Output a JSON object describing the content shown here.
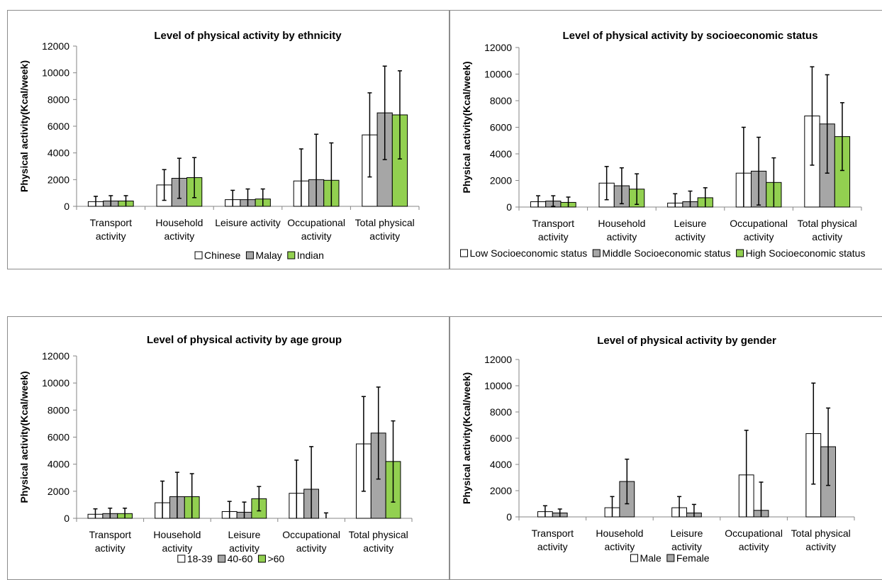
{
  "chart_data": [
    {
      "type": "bar",
      "title": "Level of physical activity by ethnicity",
      "ylabel": "Physical activity(Kcal/week)",
      "ylim": [
        0,
        12000
      ],
      "yticks": [
        "0",
        "2000",
        "4000",
        "6000",
        "8000",
        "10000",
        "12000"
      ],
      "categories": [
        [
          "Transport",
          "activity"
        ],
        [
          "Household",
          "activity"
        ],
        [
          "Leisure activity"
        ],
        [
          "Occupational",
          "activity"
        ],
        [
          "Total physical",
          "activity"
        ]
      ],
      "legend_position": "bottom",
      "series": [
        {
          "name": "Chinese",
          "color": "#ffffff",
          "values": [
            350,
            1600,
            500,
            1900,
            5350
          ],
          "err": [
            400,
            1150,
            700,
            2400,
            3150
          ]
        },
        {
          "name": "Malay",
          "color": "#a6a6a6",
          "values": [
            400,
            2100,
            500,
            2000,
            7000
          ],
          "err": [
            400,
            1500,
            800,
            3400,
            3500
          ]
        },
        {
          "name": "Indian",
          "color": "#92d050",
          "values": [
            400,
            2150,
            550,
            1950,
            6850
          ],
          "err": [
            400,
            1500,
            750,
            2800,
            3300
          ]
        }
      ]
    },
    {
      "type": "bar",
      "title": "Level of physical activity by socioeconomic status",
      "ylabel": "Physical activity(Kcal/week)",
      "ylim": [
        0,
        12000
      ],
      "yticks": [
        "0",
        "2000",
        "4000",
        "6000",
        "8000",
        "10000",
        "12000"
      ],
      "categories": [
        [
          "Transport",
          "activity"
        ],
        [
          "Household",
          "activity"
        ],
        [
          "Leisure",
          "activity"
        ],
        [
          "Occupational",
          "activity"
        ],
        [
          "Total physical",
          "activity"
        ]
      ],
      "legend_position": "bottom",
      "series": [
        {
          "name": "Low Socioeconomic status",
          "color": "#ffffff",
          "values": [
            400,
            1800,
            300,
            2550,
            6850
          ],
          "err": [
            450,
            1250,
            700,
            3450,
            3700
          ]
        },
        {
          "name": "Middle Socioeconomic status",
          "color": "#a6a6a6",
          "values": [
            450,
            1600,
            400,
            2700,
            6250
          ],
          "err": [
            400,
            1350,
            800,
            2550,
            3700
          ]
        },
        {
          "name": "High Socioeconomic status",
          "color": "#92d050",
          "values": [
            350,
            1350,
            700,
            1850,
            5300
          ],
          "err": [
            400,
            1150,
            750,
            1850,
            2550
          ]
        }
      ]
    },
    {
      "type": "bar",
      "title": "Level of physical activity by age group",
      "ylabel": "Physical activity(Kcal/week)",
      "ylim": [
        0,
        12000
      ],
      "yticks": [
        "0",
        "2000",
        "4000",
        "6000",
        "8000",
        "10000",
        "12000"
      ],
      "categories": [
        [
          "Transport",
          "activity"
        ],
        [
          "Household",
          "activity"
        ],
        [
          "Leisure",
          "activity"
        ],
        [
          "Occupational",
          "activity"
        ],
        [
          "Total physical",
          "activity"
        ]
      ],
      "legend_position": "bottom",
      "series": [
        {
          "name": "18-39",
          "color": "#ffffff",
          "values": [
            300,
            1150,
            500,
            1850,
            5500
          ],
          "err": [
            400,
            1600,
            750,
            2450,
            3500
          ]
        },
        {
          "name": "40-60",
          "color": "#a6a6a6",
          "values": [
            350,
            1600,
            450,
            2150,
            6300
          ],
          "err": [
            400,
            1800,
            750,
            3150,
            3400
          ]
        },
        {
          "name": ">60",
          "color": "#92d050",
          "values": [
            350,
            1600,
            1450,
            0,
            4200
          ],
          "err": [
            400,
            1700,
            900,
            400,
            3000
          ]
        }
      ]
    },
    {
      "type": "bar",
      "title": "Level of physical activity by gender",
      "ylabel": "Physical activity(Kcal/week)",
      "ylim": [
        0,
        12000
      ],
      "yticks": [
        "0",
        "2000",
        "4000",
        "6000",
        "8000",
        "10000",
        "12000"
      ],
      "categories": [
        [
          "Transport",
          "activity"
        ],
        [
          "Household",
          "activity"
        ],
        [
          "Leisure",
          "activity"
        ],
        [
          "Occupational",
          "activity"
        ],
        [
          "Total physical",
          "activity"
        ]
      ],
      "legend_position": "bottom",
      "series": [
        {
          "name": "Male",
          "color": "#ffffff",
          "values": [
            400,
            700,
            700,
            3200,
            6350
          ],
          "err": [
            450,
            850,
            850,
            3400,
            3850
          ]
        },
        {
          "name": "Female",
          "color": "#a6a6a6",
          "values": [
            300,
            2700,
            300,
            500,
            5350
          ],
          "err": [
            300,
            1700,
            650,
            2150,
            2950
          ]
        }
      ]
    }
  ]
}
